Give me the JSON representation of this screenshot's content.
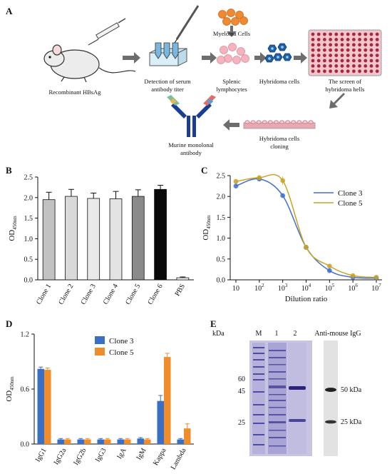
{
  "panels": {
    "a": {
      "letter": "A",
      "labels": {
        "mouse": "Recombinant HBsAg",
        "serum": [
          "Detection of  serum",
          "antibody titer"
        ],
        "myeloma": "Myeloma Cells",
        "splenic": [
          "Splenic",
          "lymphocytes"
        ],
        "hybridoma": "Hybridoma cells",
        "screen": [
          "The screen of",
          "hybridoma hells"
        ],
        "cloning": [
          "Hybridoma cells",
          "cloning"
        ],
        "antibody": [
          "Murine monolonal",
          "antibody"
        ]
      },
      "colors": {
        "mouse": "#ececec",
        "arrow": "#6d6d6d",
        "myeloma": "#f08a32",
        "lymph": "#f5b3c0",
        "hybridoma": "#1f5fa6",
        "plate": "#f1c7cf",
        "well": "#a8283c",
        "antibody": "#1b3f8f"
      }
    },
    "b": {
      "letter": "B"
    },
    "c": {
      "letter": "C"
    },
    "d": {
      "letter": "D"
    },
    "e": {
      "letter": "E",
      "kda_label": "kDa",
      "lane_labels": [
        "M",
        "1",
        "2"
      ],
      "western_title": "Anti-mouse IgG",
      "marker_ticks": [
        "60",
        "45",
        "25"
      ],
      "western_bands": [
        "50 kDa",
        "25 kDa"
      ]
    }
  },
  "chart_data": [
    {
      "id": "B",
      "type": "bar",
      "ylabel_main": "OD",
      "ylabel_sub": "450nm",
      "categories": [
        "Clone 1",
        "Clone 2",
        "Clone 3",
        "Clone 4",
        "Clone 5",
        "Clone 6",
        "PBS"
      ],
      "values": [
        1.95,
        2.03,
        1.98,
        1.97,
        2.03,
        2.2,
        0.05
      ],
      "errors": [
        0.18,
        0.17,
        0.13,
        0.18,
        0.16,
        0.1,
        0.02
      ],
      "colors": [
        "#c2c2c2",
        "#d9d9d9",
        "#e9e9e9",
        "#e3e3e3",
        "#8a8a8a",
        "#0a0a0a",
        "#ffffff"
      ],
      "ylim": [
        0,
        2.5
      ],
      "yticks": [
        "0.0",
        "0.5",
        "1.0",
        "1.5",
        "2.0",
        "2.5"
      ]
    },
    {
      "id": "C",
      "type": "line",
      "ylabel_main": "OD",
      "ylabel_sub": "450nm",
      "xlabel": "Dilution ratio",
      "xtick_base": "10",
      "xtick_exps": [
        "",
        "2",
        "3",
        "4",
        "5",
        "6",
        "7"
      ],
      "x_log10": [
        1,
        2,
        3,
        4,
        5,
        6,
        7
      ],
      "ylim": [
        0,
        2.5
      ],
      "yticks": [
        "0.0",
        "0.5",
        "1.0",
        "1.5",
        "2.0",
        "2.5"
      ],
      "series": [
        {
          "name": "Clone 3",
          "color": "#3f6fd0",
          "values": [
            2.25,
            2.42,
            2.02,
            0.78,
            0.22,
            0.06,
            0.04
          ],
          "errors": [
            0.05,
            0.05,
            0.05,
            0.04,
            0.04,
            0.02,
            0.02
          ]
        },
        {
          "name": "Clone 5",
          "color": "#c9a227",
          "values": [
            2.36,
            2.45,
            2.38,
            0.78,
            0.33,
            0.1,
            0.06
          ],
          "errors": [
            0.05,
            0.05,
            0.1,
            0.05,
            0.04,
            0.03,
            0.02
          ]
        }
      ]
    },
    {
      "id": "D",
      "type": "bar",
      "ylabel_main": "OD",
      "ylabel_sub": "450nm",
      "categories": [
        "IgG1",
        "IgG2a",
        "IgG2b",
        "IgG3",
        "IgA",
        "IgM",
        "Kappa",
        "Lambda"
      ],
      "ylim": [
        0,
        1.2
      ],
      "yticks": [
        "0.0",
        "0.6",
        "1.2"
      ],
      "series": [
        {
          "name": "Clone 3",
          "color": "#3a6fc4",
          "values": [
            0.82,
            0.05,
            0.05,
            0.05,
            0.05,
            0.06,
            0.47,
            0.05
          ],
          "errors": [
            0.02,
            0.01,
            0.01,
            0.01,
            0.01,
            0.01,
            0.06,
            0.01
          ]
        },
        {
          "name": "Clone 5",
          "color": "#ef8c2c",
          "values": [
            0.81,
            0.05,
            0.05,
            0.05,
            0.05,
            0.05,
            0.95,
            0.17
          ],
          "errors": [
            0.02,
            0.01,
            0.01,
            0.01,
            0.01,
            0.01,
            0.04,
            0.05
          ]
        }
      ]
    }
  ]
}
